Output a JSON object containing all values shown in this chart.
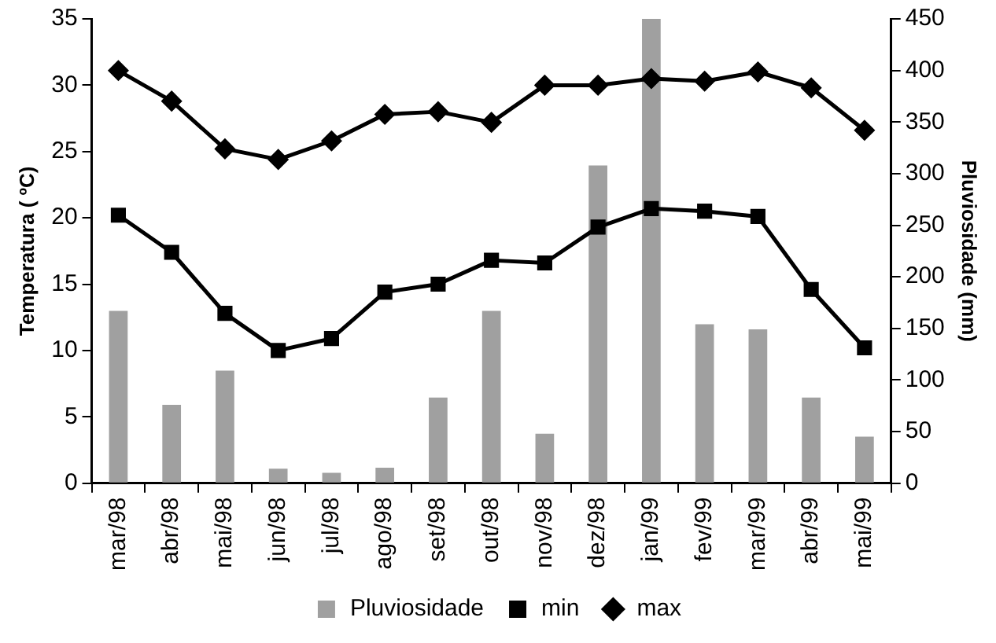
{
  "chart_data": {
    "type": "line",
    "ylabel": "Temperatura ( ºC)",
    "y2label": "Pluviosidade (mm)",
    "categories": [
      "mar/98",
      "abr/98",
      "mai/98",
      "jun/98",
      "jul/98",
      "ago/98",
      "set/98",
      "out/98",
      "nov/98",
      "dez/98",
      "jan/99",
      "fev/99",
      "mar/99",
      "abr/99",
      "mai/99"
    ],
    "series": [
      {
        "name": "Pluviosidade",
        "type": "bar",
        "axis": "y2",
        "color": "#a0a0a0",
        "values": [
          167,
          76,
          109,
          14,
          10,
          15,
          83,
          167,
          48,
          308,
          450,
          154,
          149,
          83,
          45
        ]
      },
      {
        "name": "min",
        "marker": "square",
        "color": "#000000",
        "values": [
          20.2,
          17.4,
          12.8,
          10.0,
          10.9,
          14.4,
          15.0,
          16.8,
          16.6,
          19.3,
          20.7,
          20.5,
          20.1,
          14.6,
          10.2
        ]
      },
      {
        "name": "max",
        "marker": "diamond",
        "color": "#000000",
        "values": [
          31.1,
          28.8,
          25.2,
          24.4,
          25.8,
          27.8,
          28.0,
          27.2,
          30.0,
          30.0,
          30.5,
          30.3,
          31.0,
          29.8,
          26.6
        ]
      }
    ],
    "ylim": [
      0,
      35
    ],
    "yticks": [
      0,
      5,
      10,
      15,
      20,
      25,
      30,
      35
    ],
    "y2lim": [
      0,
      450
    ],
    "y2ticks": [
      0,
      50,
      100,
      150,
      200,
      250,
      300,
      350,
      400,
      450
    ],
    "grid": false,
    "legend": "bottom"
  }
}
